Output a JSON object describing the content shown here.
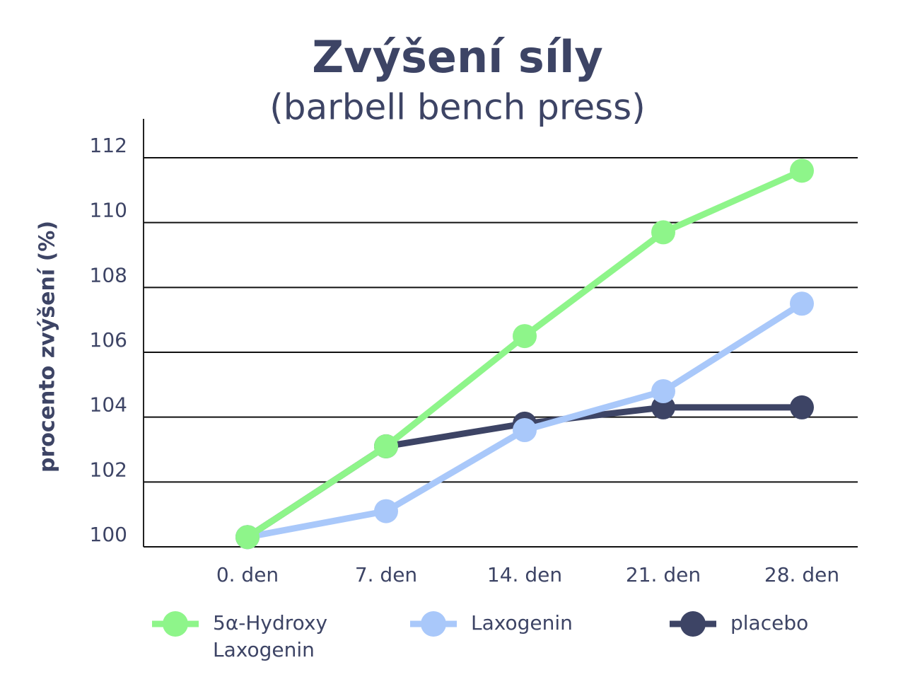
{
  "chart_data": {
    "type": "line",
    "title": "Zvýšení síly",
    "subtitle": "(barbell bench press)",
    "y_label": "procento zvýšení (%)",
    "categories": [
      "0. den",
      "7. den",
      "14. den",
      "21. den",
      "28. den"
    ],
    "series": [
      {
        "name": "5α-Hydroxy Laxogenin",
        "color": "#8ef58a",
        "values": [
          100.3,
          103.1,
          106.5,
          109.7,
          111.6
        ]
      },
      {
        "name": "Laxogenin",
        "color": "#a9c8fa",
        "values": [
          100.3,
          101.1,
          103.6,
          104.8,
          107.5
        ]
      },
      {
        "name": "placebo",
        "color": "#3d4465",
        "values": [
          100.3,
          103.1,
          103.8,
          104.3,
          104.3
        ]
      }
    ],
    "ylim": [
      100,
      113.2
    ],
    "yticks": [
      100,
      102,
      104,
      106,
      108,
      110,
      112
    ],
    "grid": true
  }
}
